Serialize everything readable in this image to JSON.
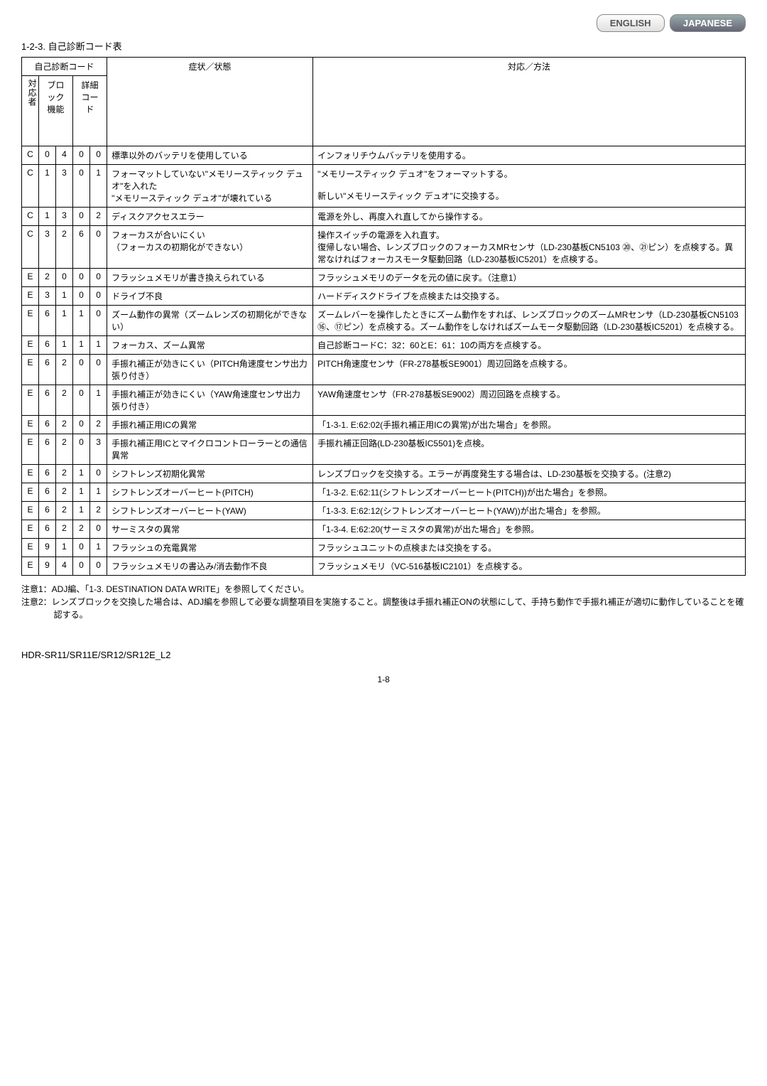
{
  "buttons": {
    "english": "ENGLISH",
    "japanese": "JAPANESE"
  },
  "section_title": "1-2-3. 自己診断コード表",
  "header": {
    "group": "自己診断コード",
    "responder": "対応者",
    "block": "ブロック\n機能",
    "detail": "詳細\nコード",
    "symptom": "症状／状態",
    "action": "対応／方法"
  },
  "rows": [
    {
      "r": "C",
      "b1": "0",
      "b2": "4",
      "d1": "0",
      "d2": "0",
      "s": "標準以外のバッテリを使用している",
      "a": "インフォリチウムバッテリを使用する。"
    },
    {
      "r": "C",
      "b1": "1",
      "b2": "3",
      "d1": "0",
      "d2": "1",
      "s": "フォーマットしていない\"メモリースティック デュオ\"を入れた\n\"メモリースティック デュオ\"が壊れている",
      "a": "\"メモリースティック デュオ\"をフォーマットする。\n\n新しい\"メモリースティック デュオ\"に交換する。"
    },
    {
      "r": "C",
      "b1": "1",
      "b2": "3",
      "d1": "0",
      "d2": "2",
      "s": "ディスクアクセスエラー",
      "a": "電源を外し、再度入れ直してから操作する。"
    },
    {
      "r": "C",
      "b1": "3",
      "b2": "2",
      "d1": "6",
      "d2": "0",
      "s": "フォーカスが合いにくい\n（フォーカスの初期化ができない）",
      "a": "操作スイッチの電源を入れ直す。\n復帰しない場合、レンズブロックのフォーカスMRセンサ（LD-230基板CN5103 ⑳、㉑ピン）を点検する。異常なければフォーカスモータ駆動回路（LD-230基板IC5201）を点検する。"
    },
    {
      "r": "E",
      "b1": "2",
      "b2": "0",
      "d1": "0",
      "d2": "0",
      "s": "フラッシュメモリが書き換えられている",
      "a": "フラッシュメモリのデータを元の値に戻す。（注意1）"
    },
    {
      "r": "E",
      "b1": "3",
      "b2": "1",
      "d1": "0",
      "d2": "0",
      "s": "ドライブ不良",
      "a": "ハードディスクドライブを点検または交換する。"
    },
    {
      "r": "E",
      "b1": "6",
      "b2": "1",
      "d1": "1",
      "d2": "0",
      "s": "ズーム動作の異常（ズームレンズの初期化ができない）",
      "a": "ズームレバーを操作したときにズーム動作をすれば、レンズブロックのズームMRセンサ（LD-230基板CN5103 ⑯、⑰ピン）を点検する。ズーム動作をしなければズームモータ駆動回路（LD-230基板IC5201）を点検する。"
    },
    {
      "r": "E",
      "b1": "6",
      "b2": "1",
      "d1": "1",
      "d2": "1",
      "s": "フォーカス、ズーム異常",
      "a": "自己診断コードC：32：60とE：61：10の両方を点検する。"
    },
    {
      "r": "E",
      "b1": "6",
      "b2": "2",
      "d1": "0",
      "d2": "0",
      "s": "手振れ補正が効きにくい（PITCH角速度センサ出力張り付き）",
      "a": "PITCH角速度センサ（FR-278基板SE9001）周辺回路を点検する。"
    },
    {
      "r": "E",
      "b1": "6",
      "b2": "2",
      "d1": "0",
      "d2": "1",
      "s": "手振れ補正が効きにくい（YAW角速度センサ出力張り付き）",
      "a": "YAW角速度センサ（FR-278基板SE9002）周辺回路を点検する。"
    },
    {
      "r": "E",
      "b1": "6",
      "b2": "2",
      "d1": "0",
      "d2": "2",
      "s": "手振れ補正用ICの異常",
      "a": "「1-3-1. E:62:02(手振れ補正用ICの異常)が出た場合」を参照。"
    },
    {
      "r": "E",
      "b1": "6",
      "b2": "2",
      "d1": "0",
      "d2": "3",
      "s": "手振れ補正用ICとマイクロコントローラーとの通信異常",
      "a": "手振れ補正回路(LD-230基板IC5501)を点検。"
    },
    {
      "r": "E",
      "b1": "6",
      "b2": "2",
      "d1": "1",
      "d2": "0",
      "s": "シフトレンズ初期化異常",
      "a": "レンズブロックを交換する。エラーが再度発生する場合は、LD-230基板を交換する。(注意2)"
    },
    {
      "r": "E",
      "b1": "6",
      "b2": "2",
      "d1": "1",
      "d2": "1",
      "s": "シフトレンズオーバーヒート(PITCH)",
      "a": "「1-3-2. E:62:11(シフトレンズオーバーヒート(PITCH))が出た場合」を参照。"
    },
    {
      "r": "E",
      "b1": "6",
      "b2": "2",
      "d1": "1",
      "d2": "2",
      "s": "シフトレンズオーバーヒート(YAW)",
      "a": "「1-3-3. E:62:12(シフトレンズオーバーヒート(YAW))が出た場合」を参照。"
    },
    {
      "r": "E",
      "b1": "6",
      "b2": "2",
      "d1": "2",
      "d2": "0",
      "s": "サーミスタの異常",
      "a": "「1-3-4. E:62:20(サーミスタの異常)が出た場合」を参照。"
    },
    {
      "r": "E",
      "b1": "9",
      "b2": "1",
      "d1": "0",
      "d2": "1",
      "s": "フラッシュの充電異常",
      "a": "フラッシュユニットの点検または交換をする。"
    },
    {
      "r": "E",
      "b1": "9",
      "b2": "4",
      "d1": "0",
      "d2": "0",
      "s": "フラッシュメモリの書込み/消去動作不良",
      "a": "フラッシュメモリ（VC-516基板IC2101）を点検する。"
    }
  ],
  "notes": {
    "n1": "注意1：ADJ編、「1-3. DESTINATION DATA WRITE」を参照してください。",
    "n2": "注意2：レンズブロックを交換した場合は、ADJ編を参照して必要な調整項目を実施すること。調整後は手振れ補正ONの状態にして、手持ち動作で手振れ補正が適切に動作していることを確認する。"
  },
  "model": "HDR-SR11/SR11E/SR12/SR12E_L2",
  "page": "1-8"
}
